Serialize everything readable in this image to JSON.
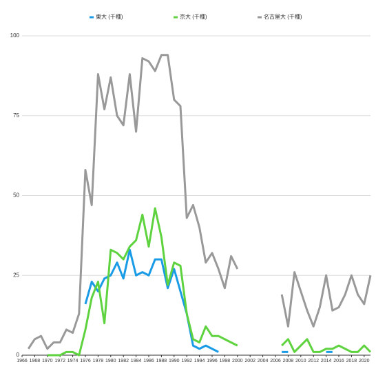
{
  "chart_data": {
    "type": "line",
    "x": [
      1966,
      1967,
      1968,
      1969,
      1970,
      1971,
      1972,
      1973,
      1974,
      1975,
      1976,
      1977,
      1978,
      1979,
      1980,
      1981,
      1982,
      1983,
      1984,
      1985,
      1986,
      1987,
      1988,
      1989,
      1990,
      1991,
      1992,
      1993,
      1994,
      1995,
      1996,
      1997,
      1998,
      1999,
      2000,
      2001,
      2002,
      2003,
      2004,
      2005,
      2006,
      2007,
      2008,
      2009,
      2010,
      2011,
      2012,
      2013,
      2014,
      2015,
      2016,
      2017,
      2018,
      2019,
      2020,
      2021
    ],
    "series": [
      {
        "name": "東大 (千種)",
        "color": "#1a9be6",
        "values": [
          null,
          null,
          null,
          null,
          null,
          null,
          null,
          null,
          null,
          null,
          16,
          23,
          20,
          24,
          25,
          29,
          24,
          33,
          25,
          26,
          25,
          30,
          30,
          21,
          27,
          20,
          13,
          3,
          2,
          3,
          2,
          1,
          null,
          null,
          null,
          null,
          null,
          null,
          null,
          null,
          null,
          1,
          1,
          null,
          null,
          null,
          null,
          null,
          1,
          1,
          null,
          null,
          null,
          null,
          null,
          null
        ]
      },
      {
        "name": "京大 (千種)",
        "color": "#5fd33f",
        "values": [
          null,
          null,
          null,
          null,
          0,
          0,
          0,
          1,
          1,
          0,
          8,
          18,
          23,
          10,
          33,
          32,
          30,
          34,
          36,
          44,
          34,
          46,
          37,
          22,
          29,
          28,
          13,
          5,
          4,
          9,
          6,
          6,
          5,
          4,
          3,
          null,
          null,
          null,
          null,
          null,
          null,
          3,
          5,
          1,
          3,
          5,
          1,
          1,
          2,
          2,
          3,
          2,
          1,
          1,
          3,
          1
        ]
      },
      {
        "name": "名古屋大 (千種)",
        "color": "#999999",
        "values": [
          null,
          2,
          5,
          6,
          2,
          4,
          4,
          8,
          7,
          13,
          58,
          47,
          88,
          77,
          87,
          75,
          72,
          88,
          70,
          93,
          92,
          89,
          94,
          94,
          80,
          78,
          43,
          47,
          40,
          29,
          32,
          27,
          21,
          31,
          27,
          null,
          null,
          null,
          null,
          null,
          null,
          19,
          9,
          26,
          20,
          14,
          9,
          15,
          25,
          14,
          15,
          19,
          25,
          19,
          16,
          25
        ]
      }
    ],
    "xlim": [
      1966,
      2021
    ],
    "xticks": [
      1966,
      1968,
      1970,
      1972,
      1974,
      1976,
      1978,
      1980,
      1982,
      1984,
      1986,
      1988,
      1990,
      1992,
      1994,
      1996,
      1998,
      2000,
      2002,
      2004,
      2006,
      2008,
      2010,
      2012,
      2014,
      2016,
      2018,
      2020
    ],
    "ylim": [
      0,
      100
    ],
    "yticks": [
      0,
      25,
      50,
      75,
      100
    ],
    "grid": true,
    "legend": "top"
  }
}
